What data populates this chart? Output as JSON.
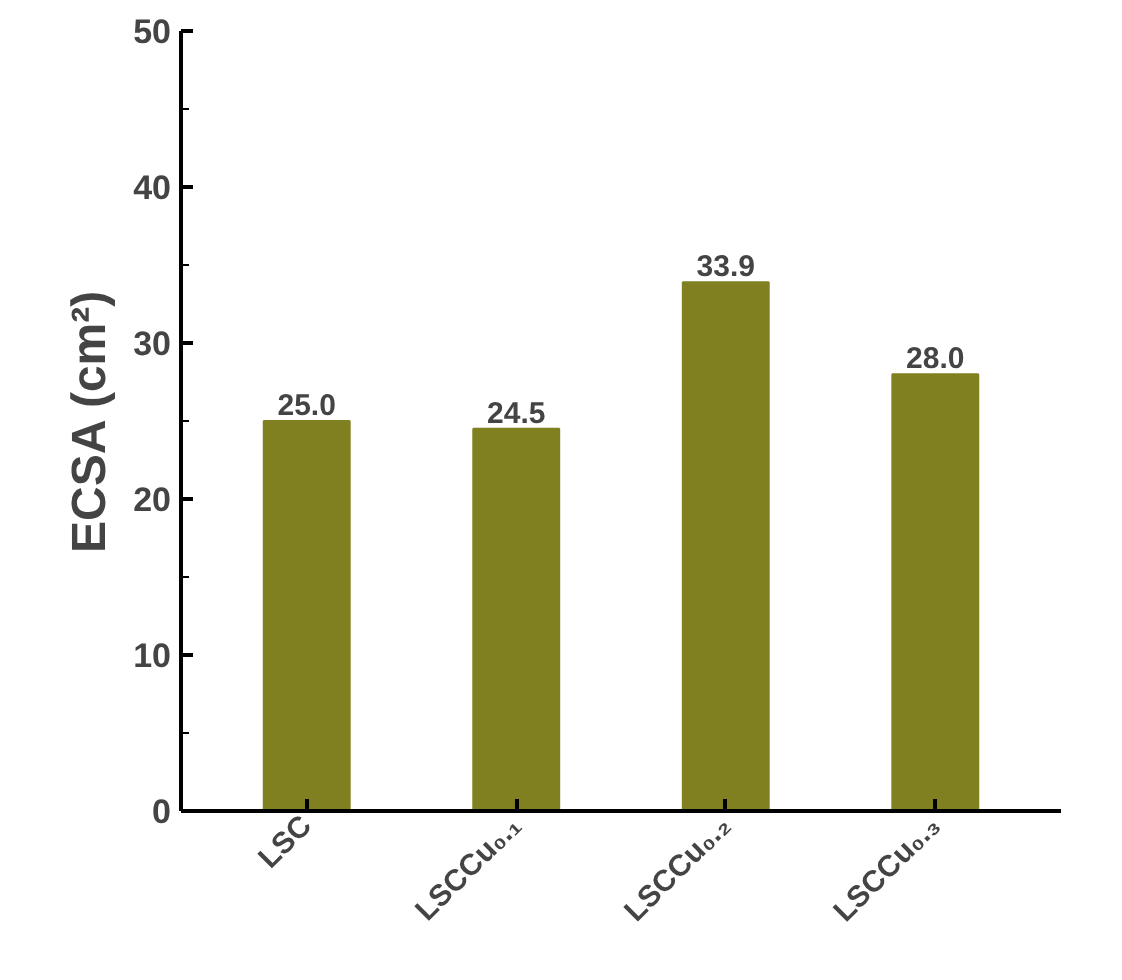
{
  "chart_data": {
    "type": "bar",
    "ylabel": "ECSA (cm²)",
    "categories": [
      "LSC",
      "LSCCu₀.₁",
      "LSCCu₀.₂",
      "LSCCu₀.₃"
    ],
    "values": [
      25.0,
      24.5,
      33.9,
      28.0
    ],
    "value_labels": [
      "25.0",
      "24.5",
      "33.9",
      "28.0"
    ],
    "color": "#808020",
    "ylim": [
      0,
      50
    ],
    "yticks": [
      0,
      10,
      20,
      30,
      40,
      50
    ],
    "grid": false
  }
}
